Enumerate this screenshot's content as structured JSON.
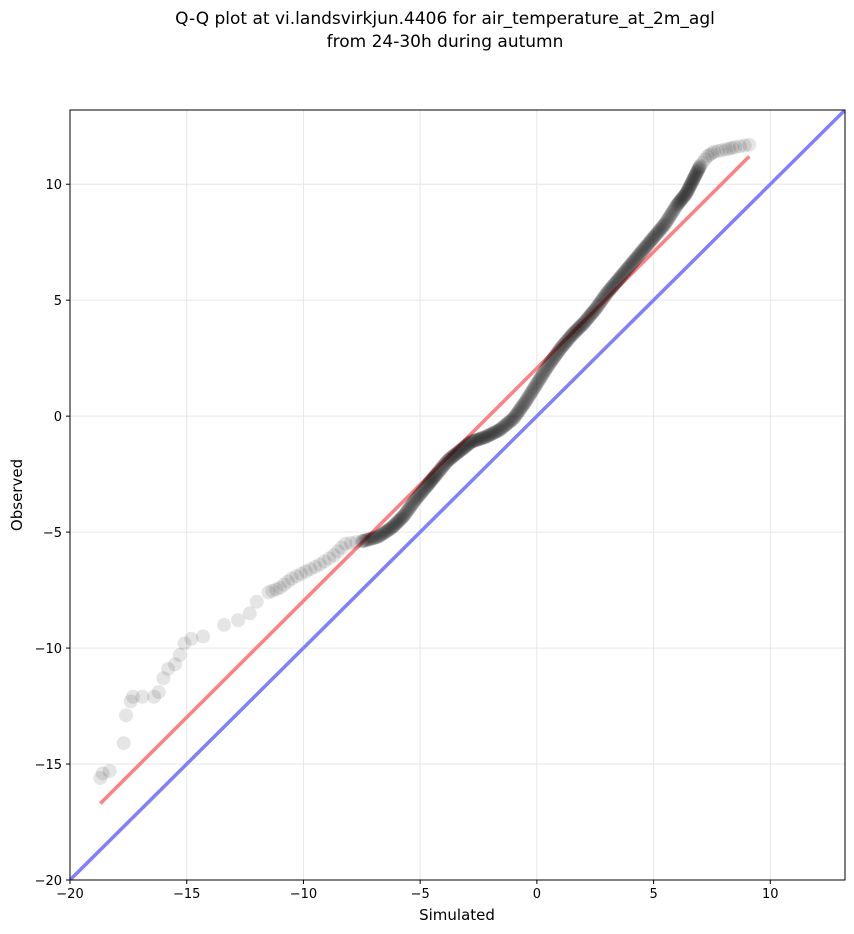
{
  "chart_data": {
    "type": "scatter",
    "title": "Q-Q plot at vi.landsvirkjun.4406 for air_temperature_at_2m_agl",
    "subtitle": "from 24-30h during autumn",
    "xlabel": "Simulated",
    "ylabel": "Observed",
    "xlim": [
      -20,
      13.2
    ],
    "ylim": [
      -20,
      13.2
    ],
    "xticks": [
      -20,
      -15,
      -10,
      -5,
      0,
      5,
      10
    ],
    "yticks": [
      -20,
      -15,
      -10,
      -5,
      0,
      5,
      10
    ],
    "xtick_labels": [
      "−20",
      "−15",
      "−10",
      "−5",
      "0",
      "5",
      "10"
    ],
    "ytick_labels": [
      "−20",
      "−15",
      "−10",
      "−5",
      "0",
      "5",
      "10"
    ],
    "grid": true,
    "colors": {
      "points": "#000000",
      "fit_line": "#ff8080",
      "identity_line": "#8080ff",
      "grid": "#e6e6e6"
    },
    "quantile_curve": [
      [
        -18.7,
        -15.6
      ],
      [
        -18.6,
        -15.4
      ],
      [
        -18.3,
        -15.3
      ],
      [
        -17.7,
        -14.1
      ],
      [
        -17.6,
        -12.9
      ],
      [
        -17.4,
        -12.3
      ],
      [
        -17.3,
        -12.1
      ],
      [
        -16.9,
        -12.1
      ],
      [
        -16.4,
        -12.1
      ],
      [
        -16.2,
        -11.9
      ],
      [
        -16.0,
        -11.3
      ],
      [
        -15.8,
        -10.9
      ],
      [
        -15.5,
        -10.7
      ],
      [
        -15.3,
        -10.3
      ],
      [
        -15.1,
        -9.8
      ],
      [
        -14.8,
        -9.6
      ],
      [
        -14.3,
        -9.5
      ],
      [
        -13.4,
        -9.0
      ],
      [
        -12.8,
        -8.8
      ],
      [
        -12.3,
        -8.5
      ],
      [
        -12.0,
        -8.0
      ],
      [
        -11.5,
        -7.6
      ],
      [
        -11.0,
        -7.4
      ],
      [
        -10.5,
        -7.0
      ],
      [
        -9.9,
        -6.7
      ],
      [
        -9.3,
        -6.4
      ],
      [
        -8.7,
        -6.0
      ],
      [
        -8.2,
        -5.5
      ],
      [
        -7.5,
        -5.4
      ],
      [
        -6.8,
        -5.2
      ],
      [
        -6.2,
        -4.8
      ],
      [
        -5.7,
        -4.3
      ],
      [
        -5.2,
        -3.6
      ],
      [
        -4.7,
        -3.0
      ],
      [
        -4.3,
        -2.5
      ],
      [
        -3.8,
        -1.9
      ],
      [
        -3.3,
        -1.5
      ],
      [
        -2.8,
        -1.1
      ],
      [
        -2.2,
        -0.9
      ],
      [
        -1.6,
        -0.6
      ],
      [
        -1.0,
        -0.1
      ],
      [
        -0.5,
        0.6
      ],
      [
        0.0,
        1.4
      ],
      [
        0.5,
        2.2
      ],
      [
        1.0,
        2.9
      ],
      [
        1.5,
        3.5
      ],
      [
        2.0,
        4.0
      ],
      [
        2.5,
        4.6
      ],
      [
        3.0,
        5.3
      ],
      [
        3.5,
        5.9
      ],
      [
        4.0,
        6.5
      ],
      [
        4.5,
        7.1
      ],
      [
        5.0,
        7.7
      ],
      [
        5.5,
        8.3
      ],
      [
        6.0,
        9.1
      ],
      [
        6.4,
        9.6
      ],
      [
        6.7,
        10.2
      ],
      [
        7.0,
        10.8
      ],
      [
        7.3,
        11.2
      ],
      [
        7.6,
        11.4
      ],
      [
        8.1,
        11.5
      ],
      [
        8.5,
        11.6
      ],
      [
        9.1,
        11.7
      ]
    ],
    "fit_line": {
      "from": [
        -18.7,
        -16.7
      ],
      "to": [
        9.1,
        11.2
      ]
    },
    "identity_line": {
      "from": [
        -20,
        -20
      ],
      "to": [
        13.2,
        13.2
      ]
    }
  }
}
